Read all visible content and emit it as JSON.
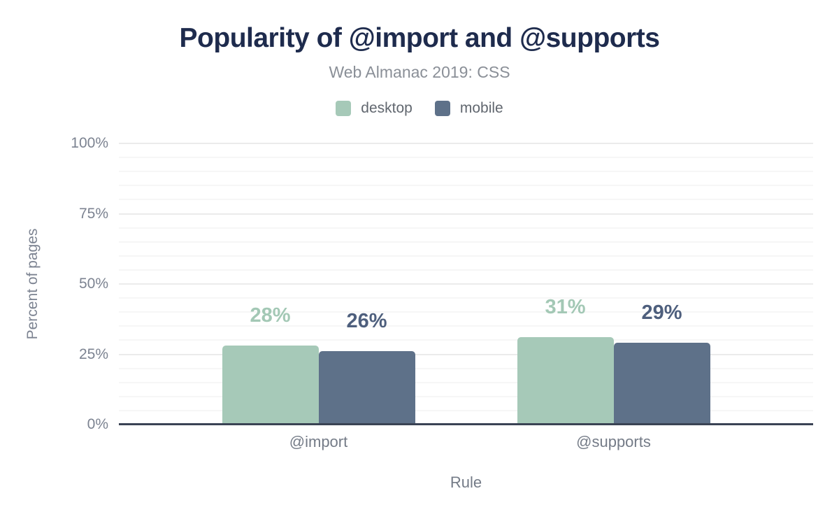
{
  "chart_data": {
    "type": "bar",
    "title": "Popularity of @import and @supports",
    "subtitle": "Web Almanac 2019: CSS",
    "categories": [
      "@import",
      "@supports"
    ],
    "series": [
      {
        "name": "desktop",
        "values": [
          28,
          31
        ],
        "labels": [
          "28%",
          "31%"
        ],
        "color": "#a6c9b8",
        "label_color": "#a3c8b5"
      },
      {
        "name": "mobile",
        "values": [
          26,
          29
        ],
        "labels": [
          "26%",
          "29%"
        ],
        "color": "#5e7189",
        "label_color": "#4e5f7d"
      }
    ],
    "xlabel": "Rule",
    "ylabel": "Percent of pages",
    "ylim": [
      0,
      100
    ],
    "yticks": [
      {
        "value": 0,
        "label": "0%"
      },
      {
        "value": 25,
        "label": "25%"
      },
      {
        "value": 50,
        "label": "50%"
      },
      {
        "value": 75,
        "label": "75%"
      },
      {
        "value": 100,
        "label": "100%"
      }
    ],
    "minor_grid_step": 5,
    "grid": "horizontal",
    "legend_position": "top",
    "colors": {
      "title": "#1e2b4d",
      "subtitle": "#8a8f97",
      "tick_label": "#7c8391",
      "category_label": "#747b87",
      "legend_label": "#61676f",
      "axis_line": "#3a4354",
      "major_grid": "#ebebeb",
      "minor_grid": "#f6f6f6",
      "background": "#ffffff"
    }
  }
}
